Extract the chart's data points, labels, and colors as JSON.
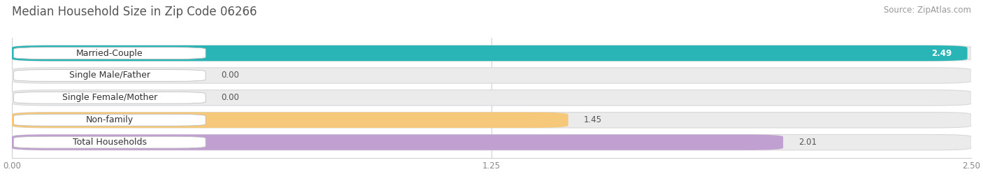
{
  "title": "Median Household Size in Zip Code 06266",
  "source": "Source: ZipAtlas.com",
  "categories": [
    "Married-Couple",
    "Single Male/Father",
    "Single Female/Mother",
    "Non-family",
    "Total Households"
  ],
  "values": [
    2.49,
    0.0,
    0.0,
    1.45,
    2.01
  ],
  "bar_colors": [
    "#29b5b5",
    "#92b8e8",
    "#f09ab0",
    "#f5c87a",
    "#c0a0d0"
  ],
  "xlim": [
    0.0,
    2.5
  ],
  "xticks": [
    0.0,
    1.25,
    2.5
  ],
  "xtick_labels": [
    "0.00",
    "1.25",
    "2.50"
  ],
  "background_color": "#ffffff",
  "bar_bg_color": "#ebebeb",
  "title_fontsize": 12,
  "source_fontsize": 8.5,
  "label_fontsize": 9,
  "value_fontsize": 8.5,
  "bar_height": 0.7,
  "value_inside_color": "#ffffff",
  "value_outside_color": "#555555",
  "inside_threshold": 2.2
}
